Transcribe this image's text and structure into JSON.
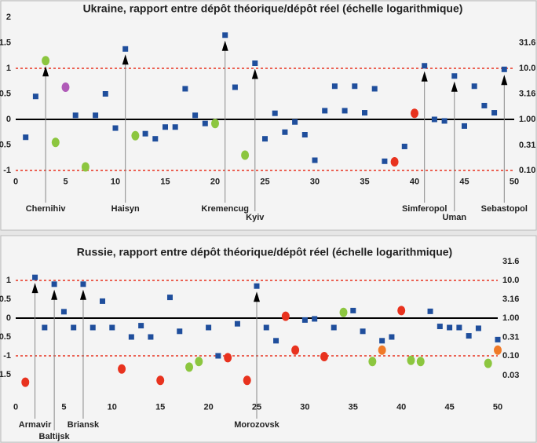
{
  "chart_data": [
    {
      "type": "scatter",
      "title": "Ukraine, rapport entre dépôt théorique/dépôt réel (échelle logarithmique)",
      "xlim": [
        0,
        50
      ],
      "xticks": [
        0,
        5,
        10,
        15,
        20,
        25,
        30,
        35,
        40,
        45,
        50
      ],
      "ylim": [
        -1.1,
        2
      ],
      "yticks": [
        -1,
        -0.5,
        0,
        0.5,
        1,
        1.5,
        2
      ],
      "y2lim": [
        0.0794,
        100
      ],
      "y2scale": "log",
      "y2ticks": [
        {
          "value": 0.1,
          "label": "0.10"
        },
        {
          "value": 0.31,
          "label": "0.31"
        },
        {
          "value": 1,
          "label": "1.00"
        },
        {
          "value": 3.16,
          "label": "3.16"
        },
        {
          "value": 10,
          "label": "10.0"
        },
        {
          "value": 31.6,
          "label": "31.6"
        }
      ],
      "dashed_lines": [
        -1,
        1
      ],
      "dashed_color": "#e8321e",
      "baseline": 0,
      "series": [
        {
          "color": "#1f4e9c",
          "marker": "square",
          "x": [
            1,
            2,
            6,
            8,
            9,
            10,
            11,
            13,
            14,
            15,
            16,
            17,
            18,
            19,
            21,
            22,
            24,
            25,
            26,
            27,
            28,
            29,
            30,
            31,
            32,
            33,
            34,
            35,
            36,
            37,
            39,
            41,
            42,
            43,
            44,
            45,
            46,
            47,
            48,
            49
          ],
          "values": [
            -0.35,
            0.45,
            0.08,
            0.08,
            0.5,
            -0.17,
            1.38,
            -0.28,
            -0.38,
            -0.15,
            -0.15,
            0.6,
            0.08,
            -0.08,
            1.65,
            0.63,
            1.1,
            -0.38,
            0.12,
            -0.25,
            -0.05,
            -0.3,
            -0.8,
            0.17,
            0.65,
            0.17,
            0.65,
            0.13,
            0.6,
            -0.82,
            -0.53,
            1.05,
            0,
            -0.03,
            0.85,
            -0.13,
            0.65,
            0.27,
            0.13,
            0.98
          ]
        },
        {
          "color": "#8cc63f",
          "marker": "circle",
          "x": [
            3,
            4,
            7,
            12,
            20,
            23
          ],
          "values": [
            1.15,
            -0.45,
            -0.93,
            -0.32,
            -0.08,
            -0.7
          ]
        },
        {
          "color": "#b05bb8",
          "marker": "circle",
          "x": [
            5
          ],
          "values": [
            0.63
          ]
        },
        {
          "color": "#e8321e",
          "marker": "circle",
          "x": [
            38,
            40
          ],
          "values": [
            -0.83,
            0.12
          ]
        }
      ],
      "annotations": [
        {
          "x": 3,
          "text": "Chernihiv"
        },
        {
          "x": 11,
          "text": "Haisyn"
        },
        {
          "x": 21,
          "text": "Kremencug"
        },
        {
          "x": 24,
          "text": "Kyiv"
        },
        {
          "x": 41,
          "text": "Simferopol"
        },
        {
          "x": 44,
          "text": "Uman"
        },
        {
          "x": 49,
          "text": "Sebastopol"
        }
      ]
    },
    {
      "type": "scatter",
      "title": "Russie, rapport entre dépôt théorique/dépôt réel (échelle logarithmique)",
      "xlim": [
        0,
        50
      ],
      "xticks": [
        0,
        5,
        10,
        15,
        20,
        25,
        30,
        35,
        40,
        45,
        50
      ],
      "ylim": [
        -2.2,
        1.6
      ],
      "yticks": [
        -1.5,
        -1,
        -0.5,
        0,
        0.5,
        1
      ],
      "y2lim": [
        0.00631,
        39.8
      ],
      "y2scale": "log",
      "y2ticks": [
        {
          "value": 0.03,
          "label": "0.03"
        },
        {
          "value": 0.1,
          "label": "0.10"
        },
        {
          "value": 0.31,
          "label": "0.31"
        },
        {
          "value": 1,
          "label": "1.00"
        },
        {
          "value": 3.16,
          "label": "3.16"
        },
        {
          "value": 10,
          "label": "10.0"
        },
        {
          "value": 31.6,
          "label": "31.6"
        }
      ],
      "dashed_lines": [
        -1,
        1
      ],
      "dashed_color": "#e8321e",
      "baseline": 0,
      "series": [
        {
          "color": "#1f4e9c",
          "marker": "square",
          "x": [
            2,
            3,
            4,
            5,
            6,
            7,
            8,
            9,
            10,
            12,
            13,
            14,
            16,
            17,
            20,
            21,
            23,
            25,
            26,
            27,
            30,
            31,
            33,
            35,
            36,
            38,
            39,
            43,
            44,
            45,
            46,
            47,
            48,
            50
          ],
          "values": [
            1.08,
            -0.25,
            0.9,
            0.17,
            -0.25,
            0.9,
            -0.25,
            0.45,
            -0.25,
            -0.5,
            -0.2,
            -0.5,
            0.55,
            -0.35,
            -0.25,
            -1.0,
            -0.15,
            0.85,
            -0.25,
            -0.6,
            -0.05,
            -0.02,
            -0.25,
            0.2,
            -0.35,
            -0.6,
            -0.5,
            0.18,
            -0.22,
            -0.25,
            -0.25,
            -0.47,
            -0.27,
            -0.57
          ]
        },
        {
          "color": "#8cc63f",
          "marker": "circle",
          "x": [
            18,
            19,
            34,
            37,
            41,
            42,
            49
          ],
          "values": [
            -1.3,
            -1.15,
            0.15,
            -1.15,
            -1.12,
            -1.15,
            -1.2
          ]
        },
        {
          "color": "#e8321e",
          "marker": "circle",
          "x": [
            1,
            11,
            15,
            22,
            24,
            28,
            29,
            32,
            40
          ],
          "values": [
            -1.7,
            -1.35,
            -1.65,
            -1.05,
            -1.65,
            0.05,
            -0.85,
            -1.02,
            0.2
          ]
        },
        {
          "color": "#f07a28",
          "marker": "circle",
          "x": [
            38,
            50
          ],
          "values": [
            -0.85,
            -0.85
          ]
        }
      ],
      "annotations": [
        {
          "x": 2,
          "text": "Armavir"
        },
        {
          "x": 4,
          "text": "Baltijsk"
        },
        {
          "x": 7,
          "text": "Briansk"
        },
        {
          "x": 25,
          "text": "Morozovsk"
        }
      ]
    }
  ]
}
